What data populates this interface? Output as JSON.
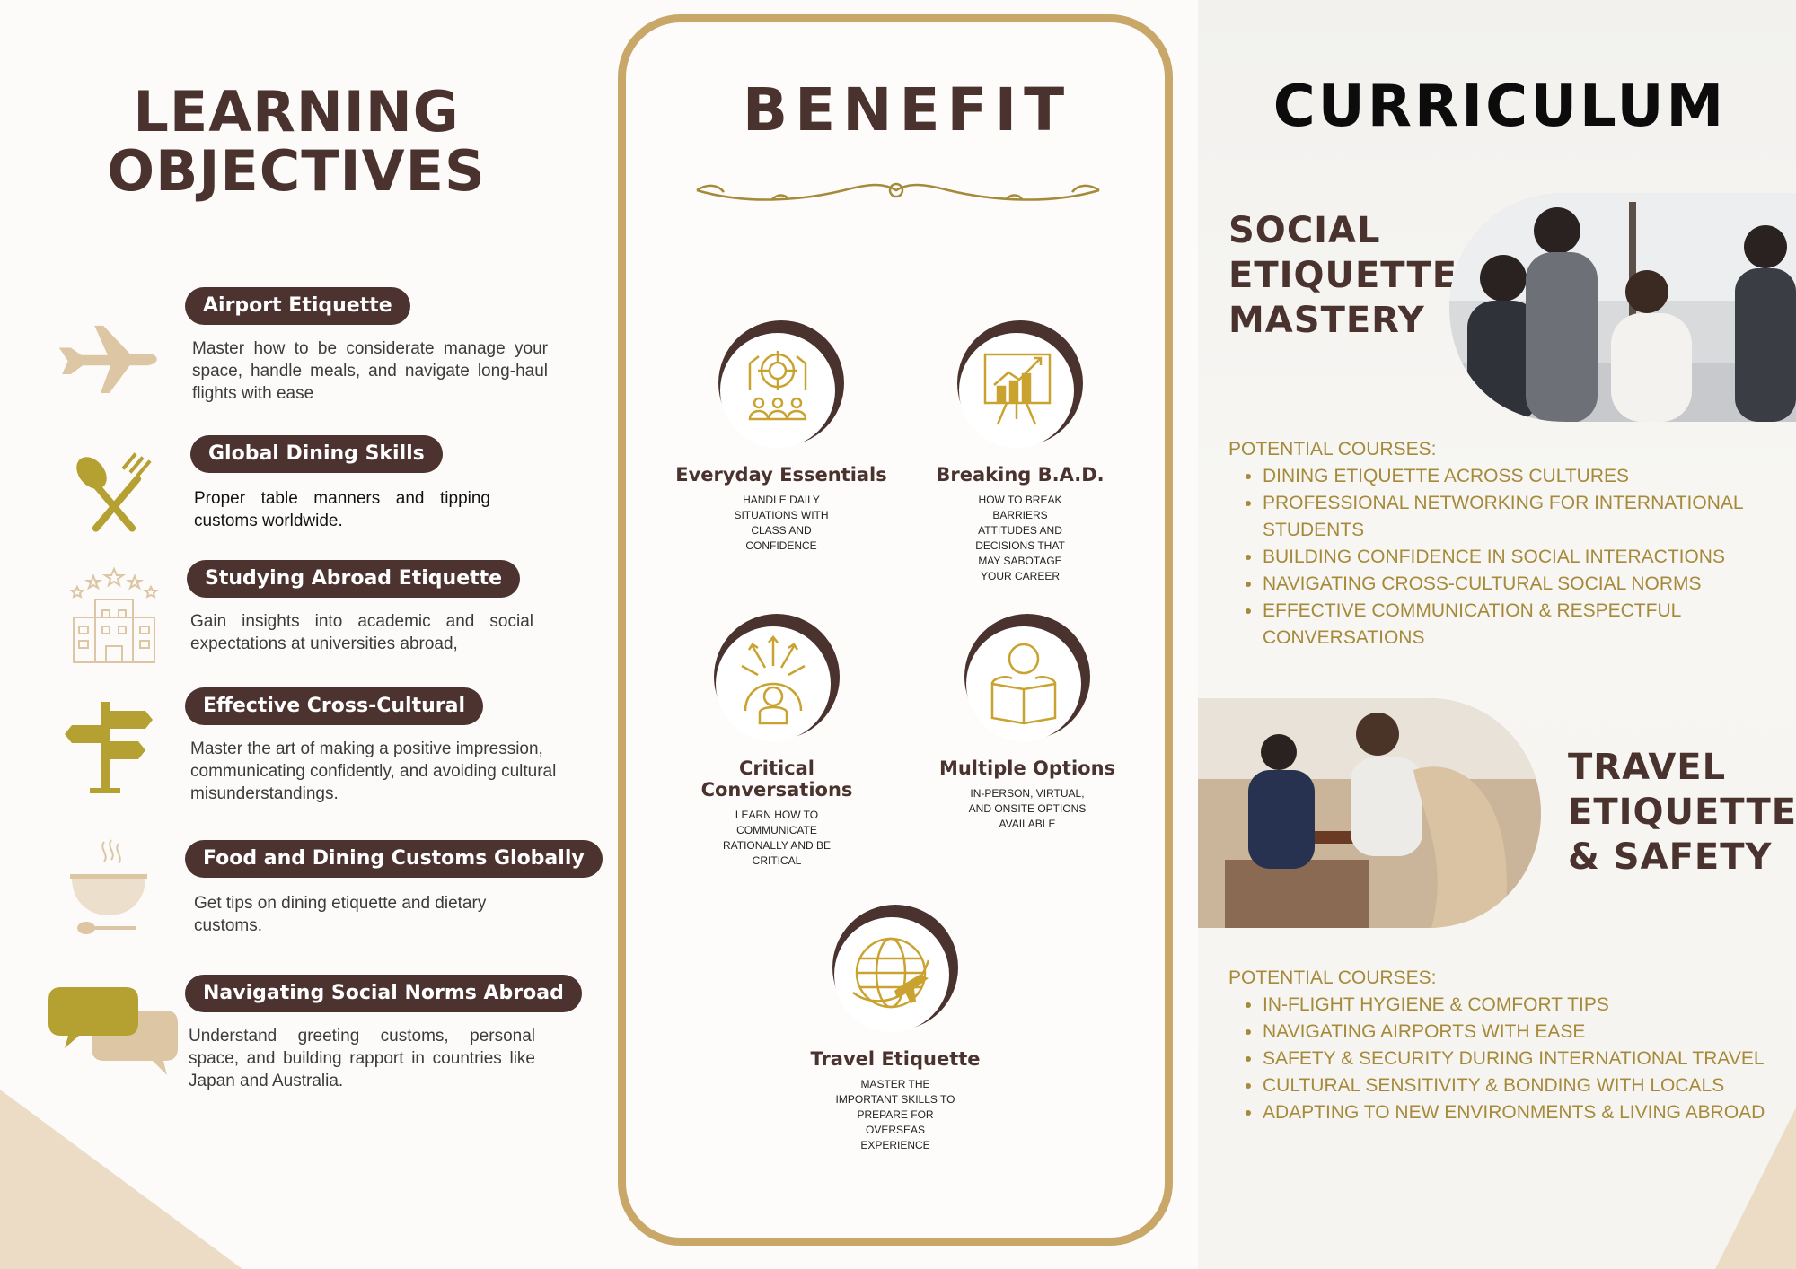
{
  "left": {
    "title_line1": "LEARNING",
    "title_line2": "OBJECTIVES",
    "objectives": [
      {
        "title": "Airport Etiquette",
        "desc": "Master how to be considerate manage your space, handle meals, and navigate long-haul flights with ease",
        "icon": "airplane-icon"
      },
      {
        "title": "Global Dining Skills",
        "desc": "Proper table manners and tipping customs worldwide.",
        "icon": "fork-spoon-icon"
      },
      {
        "title": "Studying Abroad Etiquette",
        "desc": "Gain insights into academic and social expectations at universities abroad,",
        "icon": "building-icon"
      },
      {
        "title": "Effective Cross-Cultural",
        "desc": "Master the art of making a positive impression, communicating confidently, and avoiding cultural misunderstandings.",
        "icon": "signpost-icon"
      },
      {
        "title": "Food and Dining Customs Globally",
        "desc": "Get tips on dining etiquette and dietary customs.",
        "icon": "bowl-icon"
      },
      {
        "title": "Navigating Social Norms Abroad",
        "desc": "Understand greeting customs, personal space, and building rapport in countries like Japan and Australia.",
        "icon": "speech-bubbles-icon"
      }
    ]
  },
  "middle": {
    "title": "BENEFIT",
    "benefits": [
      {
        "title": "Everyday  Essentials",
        "desc": "HANDLE DAILY SITUATIONS WITH CLASS AND CONFIDENCE",
        "icon": "target-team-icon"
      },
      {
        "title": "Breaking B.A.D.",
        "desc": "HOW TO BREAK BARRIERS ATTITUDES AND DECISIONS THAT MAY SABOTAGE YOUR CAREER",
        "icon": "chart-board-icon"
      },
      {
        "title": "Critical Conversations",
        "desc": "LEARN HOW TO COMMUNICATE RATIONALLY AND BE CRITICAL",
        "icon": "thinking-person-icon"
      },
      {
        "title": "Multiple Options",
        "desc": "IN-PERSON, VIRTUAL, AND ONSITE OPTIONS AVAILABLE",
        "icon": "reader-icon"
      },
      {
        "title": "Travel Etiquette",
        "desc": "MASTER THE IMPORTANT SKILLS TO PREPARE FOR OVERSEAS EXPERIENCE",
        "icon": "globe-plane-icon"
      }
    ]
  },
  "right": {
    "title": "CURRICULUM",
    "section1": {
      "title_lines": [
        "SOCIAL",
        "ETIQUETTE",
        "MASTERY"
      ],
      "courses_header": "POTENTIAL COURSES:",
      "courses": [
        "DINING ETIQUETTE ACROSS CULTURES",
        "PROFESSIONAL NETWORKING FOR INTERNATIONAL STUDENTS",
        "BUILDING CONFIDENCE IN SOCIAL INTERACTIONS",
        "NAVIGATING CROSS-CULTURAL SOCIAL NORMS",
        "EFFECTIVE COMMUNICATION & RESPECTFUL CONVERSATIONS"
      ]
    },
    "section2": {
      "title_lines": [
        "TRAVEL",
        "ETIQUETTE",
        "& SAFETY"
      ],
      "courses_header": "POTENTIAL COURSES:",
      "courses": [
        "IN-FLIGHT HYGIENE & COMFORT TIPS",
        "NAVIGATING AIRPORTS WITH EASE",
        "SAFETY & SECURITY DURING INTERNATIONAL TRAVEL",
        "CULTURAL SENSITIVITY & BONDING WITH LOCALS",
        "ADAPTING TO NEW ENVIRONMENTS & LIVING ABROAD"
      ]
    }
  },
  "colors": {
    "brown": "#4a332e",
    "gold": "#c9a768",
    "olive": "#b5a032",
    "tan": "#dcc6a4",
    "course_text": "#a68a3b"
  }
}
